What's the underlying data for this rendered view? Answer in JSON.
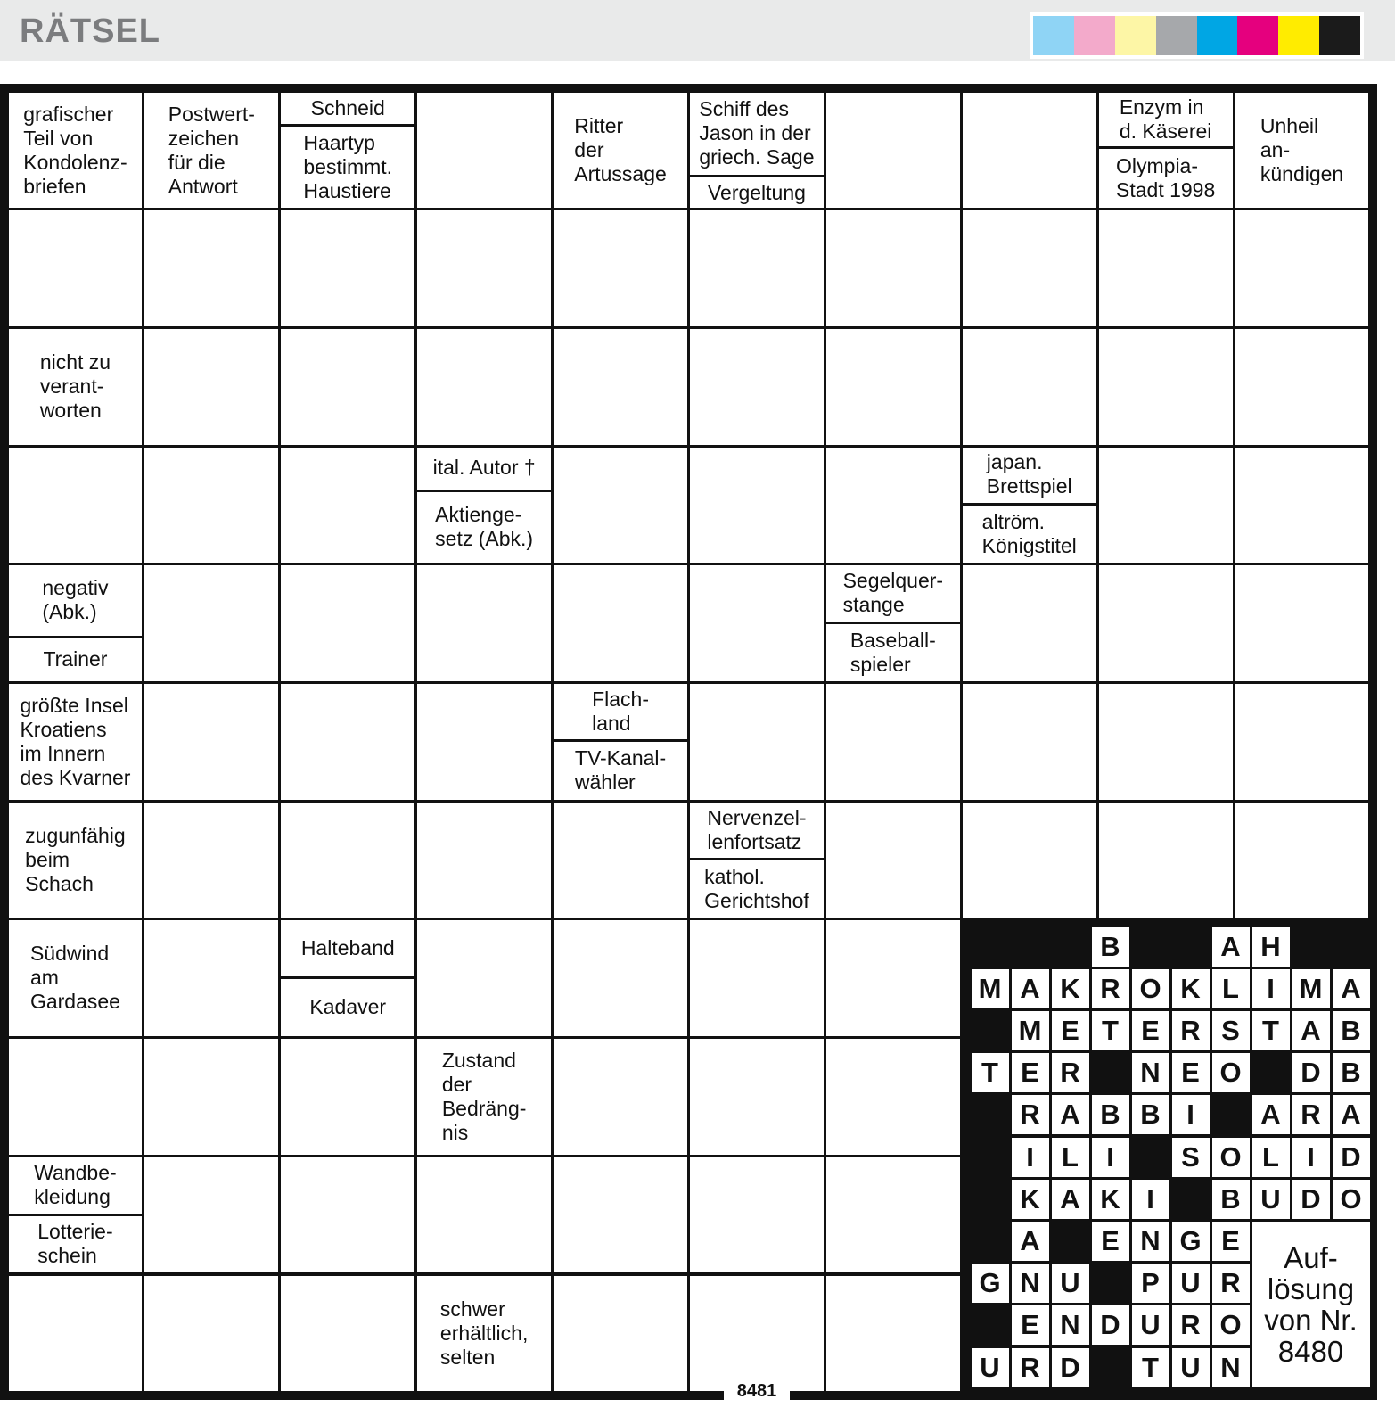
{
  "header": {
    "title": "RÄTSEL"
  },
  "clues": [
    [
      "grafischer",
      "Teil von",
      "Kondolenz-",
      "briefen"
    ],
    [
      "Postwert-",
      "zeichen",
      "für die",
      "Antwort"
    ],
    [
      "Schneid"
    ],
    [
      "Haartyp",
      "bestimmt.",
      "Haustiere"
    ],
    [
      "Ritter",
      "der",
      "Artussage"
    ],
    [
      "Schiff des",
      "Jason in der",
      "griech. Sage"
    ],
    [
      "Vergeltung"
    ],
    [
      "Enzym in",
      "d. Käserei"
    ],
    [
      "Olympia-",
      "Stadt 1998"
    ],
    [
      "Unheil",
      "an-",
      "kündigen"
    ],
    [
      "nicht zu",
      "verant-",
      "worten"
    ],
    [
      "ital. Autor †"
    ],
    [
      "Aktienge-",
      "setz (Abk.)"
    ],
    [
      "japan.",
      "Brettspiel"
    ],
    [
      "altröm.",
      "Königstitel"
    ],
    [
      "negativ",
      "(Abk.)"
    ],
    [
      "Trainer"
    ],
    [
      "Segelquer-",
      "stange"
    ],
    [
      "Baseball-",
      "spieler"
    ],
    [
      "größte Insel",
      "Kroatiens",
      "im Innern",
      "des Kvarner"
    ],
    [
      "Flach-",
      "land"
    ],
    [
      "TV-Kanal-",
      "wähler"
    ],
    [
      "zugunfähig",
      "beim",
      "Schach"
    ],
    [
      "Nervenzel-",
      "lenfortsatz"
    ],
    [
      "kathol.",
      "Gerichtshof"
    ],
    [
      "Südwind",
      "am",
      "Gardasee"
    ],
    [
      "Halteband"
    ],
    [
      "Kadaver"
    ],
    [
      "Zustand",
      "der",
      "Bedräng-",
      "nis"
    ],
    [
      "Wandbe-",
      "kleidung"
    ],
    [
      "Lotterie-",
      "schein"
    ],
    [
      "schwer",
      "erhältlich,",
      "selten"
    ]
  ],
  "solution": {
    "rows": [
      [
        null,
        null,
        null,
        "B",
        null,
        null,
        "A",
        "H",
        null,
        null
      ],
      [
        "M",
        "A",
        "K",
        "R",
        "O",
        "K",
        "L",
        "I",
        "M",
        "A"
      ],
      [
        null,
        "M",
        "E",
        "T",
        "E",
        "R",
        "S",
        "T",
        "A",
        "B"
      ],
      [
        "T",
        "E",
        "R",
        null,
        "N",
        "E",
        "O",
        null,
        "D",
        "B"
      ],
      [
        null,
        "R",
        "A",
        "B",
        "B",
        "I",
        null,
        "A",
        "R",
        "A"
      ],
      [
        null,
        "I",
        "L",
        "I",
        null,
        "S",
        "O",
        "L",
        "I",
        "D"
      ],
      [
        null,
        "K",
        "A",
        "K",
        "I",
        null,
        "B",
        "U",
        "D",
        "O"
      ],
      [
        null,
        "A",
        null,
        "E",
        "N",
        "G",
        "E",
        null,
        null,
        null
      ],
      [
        "G",
        "N",
        "U",
        null,
        "P",
        "U",
        "R",
        null,
        null,
        null
      ],
      [
        null,
        "E",
        "N",
        "D",
        "U",
        "R",
        "O",
        null,
        null,
        null
      ],
      [
        "U",
        "R",
        "D",
        null,
        "T",
        "U",
        "N",
        null,
        null,
        null
      ]
    ],
    "caption": [
      "Auf-",
      "lösung",
      "von Nr.",
      "8480"
    ]
  },
  "puzzle_number": "8481"
}
